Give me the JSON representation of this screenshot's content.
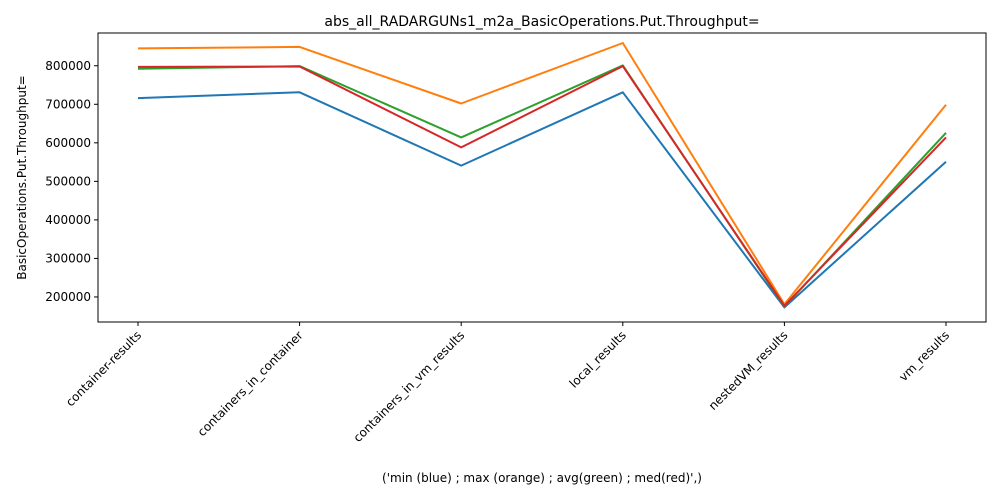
{
  "chart_data": {
    "type": "line",
    "title": "abs_all_RADARGUNs1_m2a_BasicOperations.Put.Throughput=",
    "xlabel": "('min (blue) ; max (orange) ; avg(green) ; med(red)',)",
    "ylabel": "BasicOperations.Put.Throughput=",
    "categories": [
      "container-results",
      "containers_in_container",
      "containers_in_vm_results",
      "local_results",
      "nestedVM_results",
      "vm_results"
    ],
    "ylim": [
      135000,
      885000
    ],
    "yticks": [
      200000,
      300000,
      400000,
      500000,
      600000,
      700000,
      800000
    ],
    "ytick_labels": [
      "200000",
      "300000",
      "400000",
      "500000",
      "600000",
      "700000",
      "800000"
    ],
    "grid": false,
    "series": [
      {
        "color": "#1f77b4",
        "values": [
          716000,
          731000,
          541000,
          731000,
          173000,
          551000
        ]
      },
      {
        "color": "#ff7f0e",
        "values": [
          845000,
          849000,
          702000,
          859000,
          181000,
          699000
        ]
      },
      {
        "color": "#2ca02c",
        "values": [
          792000,
          799000,
          614000,
          801000,
          175000,
          626000
        ]
      },
      {
        "color": "#d62728",
        "values": [
          797000,
          798000,
          588000,
          799000,
          177000,
          614000
        ]
      }
    ]
  }
}
